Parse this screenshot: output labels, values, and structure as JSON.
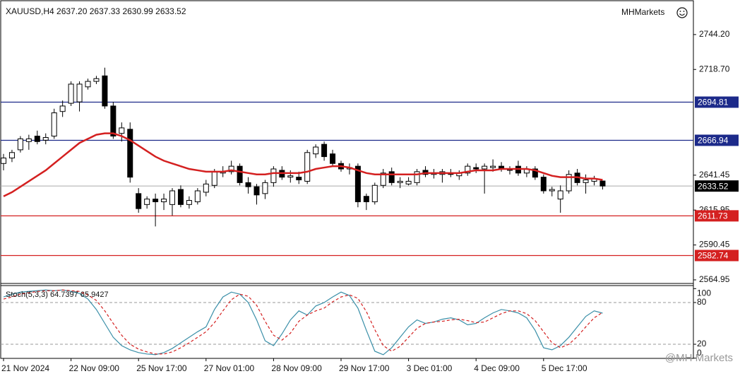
{
  "header": {
    "title": "XAUUSD,H4  2637.20 2637.33 2630.99 2633.52",
    "brand": "MHMarkets",
    "watermark": "@MH Markets"
  },
  "chart_data": [
    {
      "type": "candlestick",
      "categories": [
        "21 Nov 2024",
        null,
        null,
        null,
        null,
        null,
        null,
        null,
        "22 Nov 09:00",
        null,
        null,
        null,
        null,
        null,
        null,
        null,
        "25 Nov 17:00",
        null,
        null,
        null,
        null,
        null,
        null,
        null,
        "27 Nov 01:00",
        null,
        null,
        null,
        null,
        null,
        null,
        null,
        "28 Nov 09:00",
        null,
        null,
        null,
        null,
        null,
        null,
        null,
        "29 Nov 17:00",
        null,
        null,
        null,
        null,
        null,
        null,
        null,
        "3 Dec 01:00",
        null,
        null,
        null,
        null,
        null,
        null,
        null,
        "4 Dec 09:00",
        null,
        null,
        null,
        null,
        null,
        null,
        null,
        "5 Dec 17:00",
        null,
        null,
        null,
        null,
        null,
        null,
        null
      ],
      "open": [
        2650,
        2654,
        2660,
        2666,
        2670,
        2667,
        2670,
        2688,
        2694,
        2695,
        2706,
        2710,
        2714,
        2692,
        2672,
        2675,
        2628,
        2620,
        2624,
        2622,
        2620,
        2631,
        2620,
        2622,
        2629,
        2634,
        2643,
        2644,
        2648,
        2636,
        2633,
        2628,
        2636,
        2645,
        2640,
        2640,
        2637,
        2657,
        2664,
        2657,
        2650,
        2646,
        2648,
        2626,
        2622,
        2634,
        2644,
        2636,
        2635,
        2636,
        2645,
        2642,
        2642,
        2643,
        2641,
        2643,
        2647,
        2646,
        2647,
        2648,
        2646,
        2648,
        2643,
        2646,
        2640,
        2630,
        2624,
        2630,
        2643,
        2636,
        2637,
        2637.2
      ],
      "high": [
        2657,
        2660,
        2670,
        2671,
        2674,
        2672,
        2690,
        2696,
        2710,
        2710,
        2712,
        2714,
        2720,
        2695,
        2680,
        2680,
        2632,
        2626,
        2628,
        2628,
        2632,
        2634,
        2626,
        2632,
        2638,
        2646,
        2648,
        2652,
        2650,
        2640,
        2635,
        2638,
        2648,
        2648,
        2645,
        2644,
        2660,
        2664,
        2666,
        2660,
        2652,
        2650,
        2650,
        2628,
        2636,
        2646,
        2647,
        2640,
        2640,
        2646,
        2648,
        2646,
        2646,
        2646,
        2645,
        2650,
        2650,
        2650,
        2653,
        2651,
        2648,
        2652,
        2648,
        2648,
        2642,
        2633,
        2634,
        2645,
        2646,
        2642,
        2641,
        2637.33
      ],
      "low": [
        2645,
        2651,
        2658,
        2660,
        2664,
        2664,
        2668,
        2684,
        2692,
        2688,
        2704,
        2708,
        2690,
        2668,
        2666,
        2636,
        2614,
        2617,
        2604,
        2616,
        2612,
        2618,
        2617,
        2620,
        2626,
        2632,
        2640,
        2642,
        2634,
        2628,
        2620,
        2624,
        2633,
        2638,
        2636,
        2635,
        2635,
        2654,
        2652,
        2648,
        2644,
        2642,
        2618,
        2616,
        2620,
        2632,
        2634,
        2632,
        2634,
        2634,
        2640,
        2639,
        2636,
        2640,
        2638,
        2641,
        2643,
        2628,
        2644,
        2644,
        2642,
        2641,
        2640,
        2638,
        2628,
        2626,
        2614,
        2628,
        2634,
        2628,
        2634,
        2630.99
      ],
      "close": [
        2654,
        2658,
        2668,
        2668,
        2666,
        2669,
        2687,
        2692,
        2708,
        2708,
        2710,
        2712,
        2692,
        2670,
        2676,
        2640,
        2617,
        2624,
        2622,
        2624,
        2630,
        2620,
        2623,
        2630,
        2635,
        2644,
        2644,
        2648,
        2636,
        2633,
        2627,
        2636,
        2646,
        2640,
        2641,
        2638,
        2658,
        2662,
        2655,
        2650,
        2646,
        2647,
        2622,
        2622,
        2634,
        2643,
        2636,
        2637,
        2637,
        2644,
        2642,
        2643,
        2644,
        2642,
        2643,
        2648,
        2646,
        2648,
        2648,
        2646,
        2645,
        2643,
        2646,
        2640,
        2630,
        2631,
        2630,
        2642,
        2636,
        2638,
        2639,
        2633.52
      ],
      "up_color": "#ffffff",
      "down_color": "#000000",
      "outline_color": "#000000",
      "moving_average": {
        "color": "#d42020",
        "values": [
          2626,
          2629,
          2633,
          2637,
          2641,
          2645,
          2650,
          2655,
          2660,
          2665,
          2668,
          2671,
          2672,
          2672,
          2670,
          2667,
          2663,
          2659,
          2655,
          2652,
          2650,
          2648,
          2646,
          2645,
          2644,
          2644,
          2644,
          2645,
          2644,
          2643,
          2642,
          2642,
          2643,
          2643,
          2643,
          2643,
          2644,
          2646,
          2647,
          2648,
          2648,
          2647,
          2645,
          2643,
          2642,
          2642,
          2642,
          2642,
          2642,
          2642,
          2643,
          2643,
          2643,
          2643,
          2643,
          2644,
          2645,
          2645,
          2645,
          2646,
          2646,
          2646,
          2646,
          2645,
          2643,
          2641,
          2640,
          2640,
          2640,
          2639,
          2639,
          2638
        ]
      },
      "levels": [
        {
          "value": 2694.81,
          "color": "#1c2a8a"
        },
        {
          "value": 2666.94,
          "color": "#1c2a8a"
        },
        {
          "value": 2611.73,
          "color": "#d42020"
        },
        {
          "value": 2582.74,
          "color": "#d42020"
        }
      ],
      "price_line": {
        "value": 2633.52,
        "color": "#000000"
      },
      "ylim": [
        2562.85,
        2768.93
      ],
      "yticks": [
        {
          "value": 2744.2,
          "label": "2744.20"
        },
        {
          "value": 2718.7,
          "label": "2718.70"
        },
        2641.45,
        2615.95,
        2590.45,
        2564.95
      ]
    },
    {
      "type": "line",
      "title": "Stoch(5,3,3) 64.7397 65.9427",
      "series": [
        {
          "color": "#3a8fa8",
          "values": [
            88,
            92,
            95,
            96,
            97,
            98,
            97,
            98,
            96,
            93,
            85,
            70,
            50,
            30,
            18,
            12,
            8,
            6,
            5,
            8,
            14,
            22,
            30,
            38,
            45,
            70,
            88,
            95,
            92,
            80,
            55,
            25,
            18,
            35,
            55,
            68,
            62,
            75,
            80,
            88,
            95,
            90,
            72,
            40,
            10,
            5,
            15,
            30,
            45,
            55,
            50,
            52,
            56,
            58,
            55,
            48,
            50,
            58,
            65,
            70,
            68,
            65,
            58,
            40,
            15,
            12,
            18,
            30,
            45,
            60,
            68,
            64.7397
          ]
        },
        {
          "color": "#d42020",
          "dashed": true,
          "values": [
            85,
            88,
            92,
            94,
            96,
            97,
            97,
            98,
            97,
            96,
            91,
            83,
            68,
            50,
            33,
            20,
            13,
            9,
            6,
            6,
            9,
            15,
            22,
            30,
            38,
            51,
            68,
            84,
            92,
            89,
            76,
            53,
            33,
            26,
            36,
            53,
            62,
            68,
            72,
            81,
            88,
            91,
            86,
            67,
            41,
            18,
            10,
            17,
            30,
            43,
            50,
            52,
            53,
            55,
            56,
            54,
            51,
            52,
            58,
            64,
            68,
            68,
            64,
            54,
            38,
            22,
            15,
            20,
            31,
            45,
            58,
            65.9427
          ]
        }
      ],
      "ylim": [
        0,
        100
      ],
      "yticks": [
        100,
        80,
        20,
        0
      ],
      "levels": [
        80,
        20
      ]
    }
  ]
}
